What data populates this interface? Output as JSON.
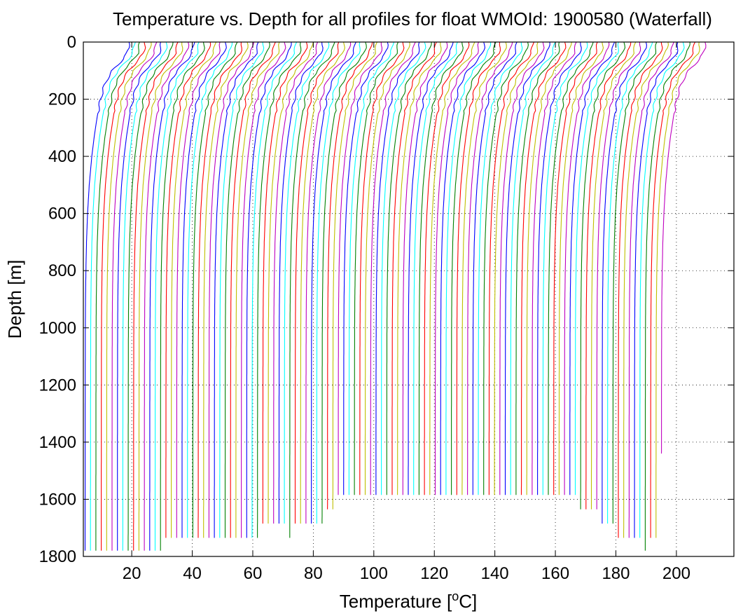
{
  "chart_data": {
    "type": "line",
    "title": "Temperature vs. Depth for all profiles for float WMOId: 1900580 (Waterfall)",
    "xlabel_main": "Temperature [",
    "xlabel_sup": "o",
    "xlabel_tail": "C]",
    "ylabel": "Depth [m]",
    "xlim": [
      4,
      219
    ],
    "ylim": [
      1800,
      0
    ],
    "y_reversed": true,
    "grid": true,
    "grid_style": "dotted",
    "xticks": [
      20,
      40,
      60,
      80,
      100,
      120,
      140,
      160,
      180,
      200
    ],
    "yticks": [
      0,
      200,
      400,
      600,
      800,
      1000,
      1200,
      1400,
      1600,
      1800
    ],
    "xtick_labels": [
      "20",
      "40",
      "60",
      "80",
      "100",
      "120",
      "140",
      "160",
      "180",
      "200"
    ],
    "ytick_labels": [
      "0",
      "200",
      "400",
      "600",
      "800",
      "1000",
      "1200",
      "1400",
      "1600",
      "1800"
    ],
    "colors": [
      "#0000ff",
      "#00ffff",
      "#008000",
      "#ff0000",
      "#bfbf00",
      "#bf00bf"
    ],
    "waterfall": {
      "profile_count": 108,
      "first_offset": 4.6,
      "offset_step": 1.78,
      "profile_shape": {
        "depth": [
          0,
          20,
          40,
          60,
          80,
          100,
          130,
          160,
          200,
          260,
          330,
          400,
          500,
          600,
          700,
          800,
          900,
          1000,
          1200,
          1400,
          1600,
          1780
        ],
        "temp": [
          14.5,
          14.3,
          13.8,
          12.5,
          10.8,
          9.0,
          7.3,
          6.1,
          5.1,
          4.0,
          3.0,
          2.2,
          1.35,
          0.8,
          0.45,
          0.25,
          0.12,
          0.06,
          0.02,
          0.0,
          -0.01,
          -0.02
        ]
      },
      "bottom_depths": [
        [
          0,
          1780
        ],
        [
          15,
          1735
        ],
        [
          33,
          1685
        ],
        [
          38,
          1735
        ],
        [
          39,
          1685
        ],
        [
          45,
          1635
        ],
        [
          47,
          1585
        ],
        [
          92,
          1635
        ],
        [
          96,
          1685
        ],
        [
          99,
          1735
        ],
        [
          104,
          1780
        ],
        [
          105,
          1735
        ],
        [
          107,
          1440
        ]
      ]
    }
  }
}
